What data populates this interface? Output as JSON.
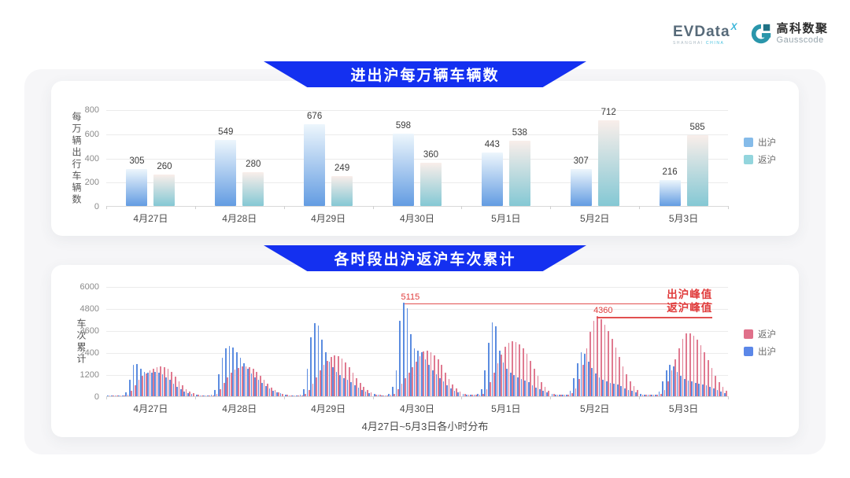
{
  "brand": {
    "evdata_text": "EVData",
    "evdata_x": "X",
    "evdata_sub1": "SHANGHAI",
    "evdata_sub2": "CHINA",
    "gauss_cn": "高科数聚",
    "gauss_en": "Gausscode"
  },
  "colors": {
    "banner_blue": "#1430f0",
    "annotation_red": "#e03c3c",
    "daily_blue_gradient_top": "#edf6fc",
    "daily_blue_gradient_bottom": "#639ce2",
    "daily_teal_gradient_top": "#f9eeea",
    "daily_teal_gradient_bottom": "#84c8d4",
    "hourly_blue": "#5b8ce0",
    "hourly_pink": "#e07a90"
  },
  "chart_data": [
    {
      "type": "bar",
      "title": "进出沪每万辆车辆数",
      "ylabel": "每万辆出行车辆数",
      "ylim": [
        0,
        800
      ],
      "yticks": [
        0,
        200,
        400,
        600,
        800
      ],
      "grid": true,
      "legend_position": "right",
      "categories": [
        "4月27日",
        "4月28日",
        "4月29日",
        "4月30日",
        "5月1日",
        "5月2日",
        "5月3日"
      ],
      "series": [
        {
          "name": "出沪",
          "values": [
            305,
            549,
            676,
            598,
            443,
            307,
            216
          ],
          "gradient": [
            "#edf6fc",
            "#639ce2"
          ]
        },
        {
          "name": "返沪",
          "values": [
            260,
            280,
            249,
            360,
            538,
            712,
            585
          ],
          "gradient": [
            "#f9eeea",
            "#84c8d4"
          ]
        }
      ],
      "legend": [
        {
          "label": "出沪",
          "color": "#85bbe9"
        },
        {
          "label": "返沪",
          "color": "#93d5dd"
        }
      ]
    },
    {
      "type": "bar",
      "title": "各时段出沪返沪车次累计",
      "ylabel": "车次累计",
      "xlabel": "4月27日~5月3日各小时分布",
      "ylim": [
        0,
        6000
      ],
      "yticks": [
        0,
        1200,
        2400,
        3600,
        4800,
        6000
      ],
      "grid": true,
      "legend_position": "right",
      "categories": [
        "4月27日",
        "4月28日",
        "4月29日",
        "4月30日",
        "5月1日",
        "5月2日",
        "5月3日"
      ],
      "hours_per_day": 24,
      "series": [
        {
          "name": "出沪",
          "color": "#5b8ce0",
          "values_by_day": [
            [
              60,
              45,
              40,
              40,
              60,
              200,
              900,
              1700,
              1760,
              1520,
              1350,
              1280,
              1300,
              1350,
              1300,
              1200,
              1050,
              880,
              700,
              520,
              380,
              270,
              180,
              120
            ],
            [
              90,
              60,
              45,
              45,
              70,
              350,
              1200,
              2100,
              2600,
              2750,
              2650,
              2400,
              2100,
              1800,
              1500,
              1250,
              1050,
              880,
              720,
              560,
              430,
              320,
              230,
              160
            ],
            [
              100,
              60,
              50,
              50,
              100,
              400,
              1500,
              3200,
              4000,
              3850,
              3100,
              2400,
              1900,
              1600,
              1350,
              1150,
              1000,
              880,
              760,
              620,
              480,
              360,
              260,
              180
            ],
            [
              120,
              80,
              60,
              60,
              150,
              500,
              1400,
              4100,
              5115,
              4800,
              3400,
              2600,
              2500,
              2400,
              2000,
              1700,
              1400,
              1200,
              1000,
              800,
              600,
              450,
              300,
              200
            ],
            [
              140,
              95,
              75,
              75,
              110,
              380,
              1400,
              2900,
              4050,
              3800,
              2500,
              1850,
              1500,
              1300,
              1150,
              1050,
              950,
              860,
              760,
              620,
              490,
              380,
              290,
              200
            ],
            [
              150,
              100,
              80,
              80,
              100,
              300,
              1000,
              1800,
              2400,
              2300,
              1900,
              1550,
              1250,
              1050,
              920,
              820,
              750,
              690,
              630,
              540,
              450,
              360,
              280,
              200
            ],
            [
              120,
              90,
              70,
              70,
              90,
              250,
              800,
              1400,
              1700,
              1620,
              1350,
              1120,
              960,
              860,
              800,
              750,
              700,
              650,
              600,
              510,
              420,
              330,
              250,
              170
            ]
          ]
        },
        {
          "name": "返沪",
          "color": "#e07a90",
          "values_by_day": [
            [
              55,
              45,
              40,
              40,
              50,
              90,
              300,
              600,
              900,
              1100,
              1250,
              1400,
              1500,
              1580,
              1640,
              1600,
              1500,
              1320,
              1080,
              820,
              580,
              400,
              270,
              170
            ],
            [
              70,
              55,
              45,
              45,
              55,
              110,
              380,
              750,
              1050,
              1300,
              1450,
              1550,
              1620,
              1650,
              1600,
              1480,
              1320,
              1120,
              900,
              680,
              480,
              340,
              230,
              150
            ],
            [
              80,
              60,
              50,
              50,
              60,
              120,
              350,
              700,
              1050,
              1400,
              1700,
              1950,
              2150,
              2250,
              2200,
              2050,
              1850,
              1600,
              1300,
              1000,
              720,
              500,
              340,
              220
            ],
            [
              100,
              70,
              60,
              60,
              70,
              150,
              400,
              700,
              1000,
              1300,
              1600,
              1900,
              2200,
              2450,
              2500,
              2400,
              2250,
              2000,
              1700,
              1300,
              950,
              650,
              420,
              260
            ],
            [
              120,
              90,
              75,
              75,
              85,
              140,
              380,
              780,
              1280,
              1780,
              2280,
              2680,
              2900,
              3020,
              2960,
              2820,
              2600,
              2300,
              1920,
              1520,
              1120,
              780,
              520,
              320
            ],
            [
              130,
              100,
              85,
              85,
              95,
              160,
              420,
              950,
              1700,
              2600,
              3500,
              4100,
              4360,
              4200,
              3900,
              3550,
              3150,
              2650,
              2150,
              1650,
              1200,
              820,
              540,
              350
            ],
            [
              100,
              85,
              70,
              70,
              80,
              140,
              360,
              820,
              1420,
              2020,
              2620,
              3120,
              3420,
              3450,
              3300,
              3080,
              2780,
              2380,
              1980,
              1540,
              1130,
              780,
              500,
              310
            ]
          ]
        }
      ],
      "legend": [
        {
          "label": "返沪",
          "color": "#e0708a"
        },
        {
          "label": "出沪",
          "color": "#5b87e8"
        }
      ],
      "annotations": [
        {
          "value": 5115,
          "label": "5115",
          "text": "出沪峰值",
          "series": "出沪"
        },
        {
          "value": 4360,
          "label": "4360",
          "text": "返沪峰值",
          "series": "返沪"
        }
      ]
    }
  ]
}
